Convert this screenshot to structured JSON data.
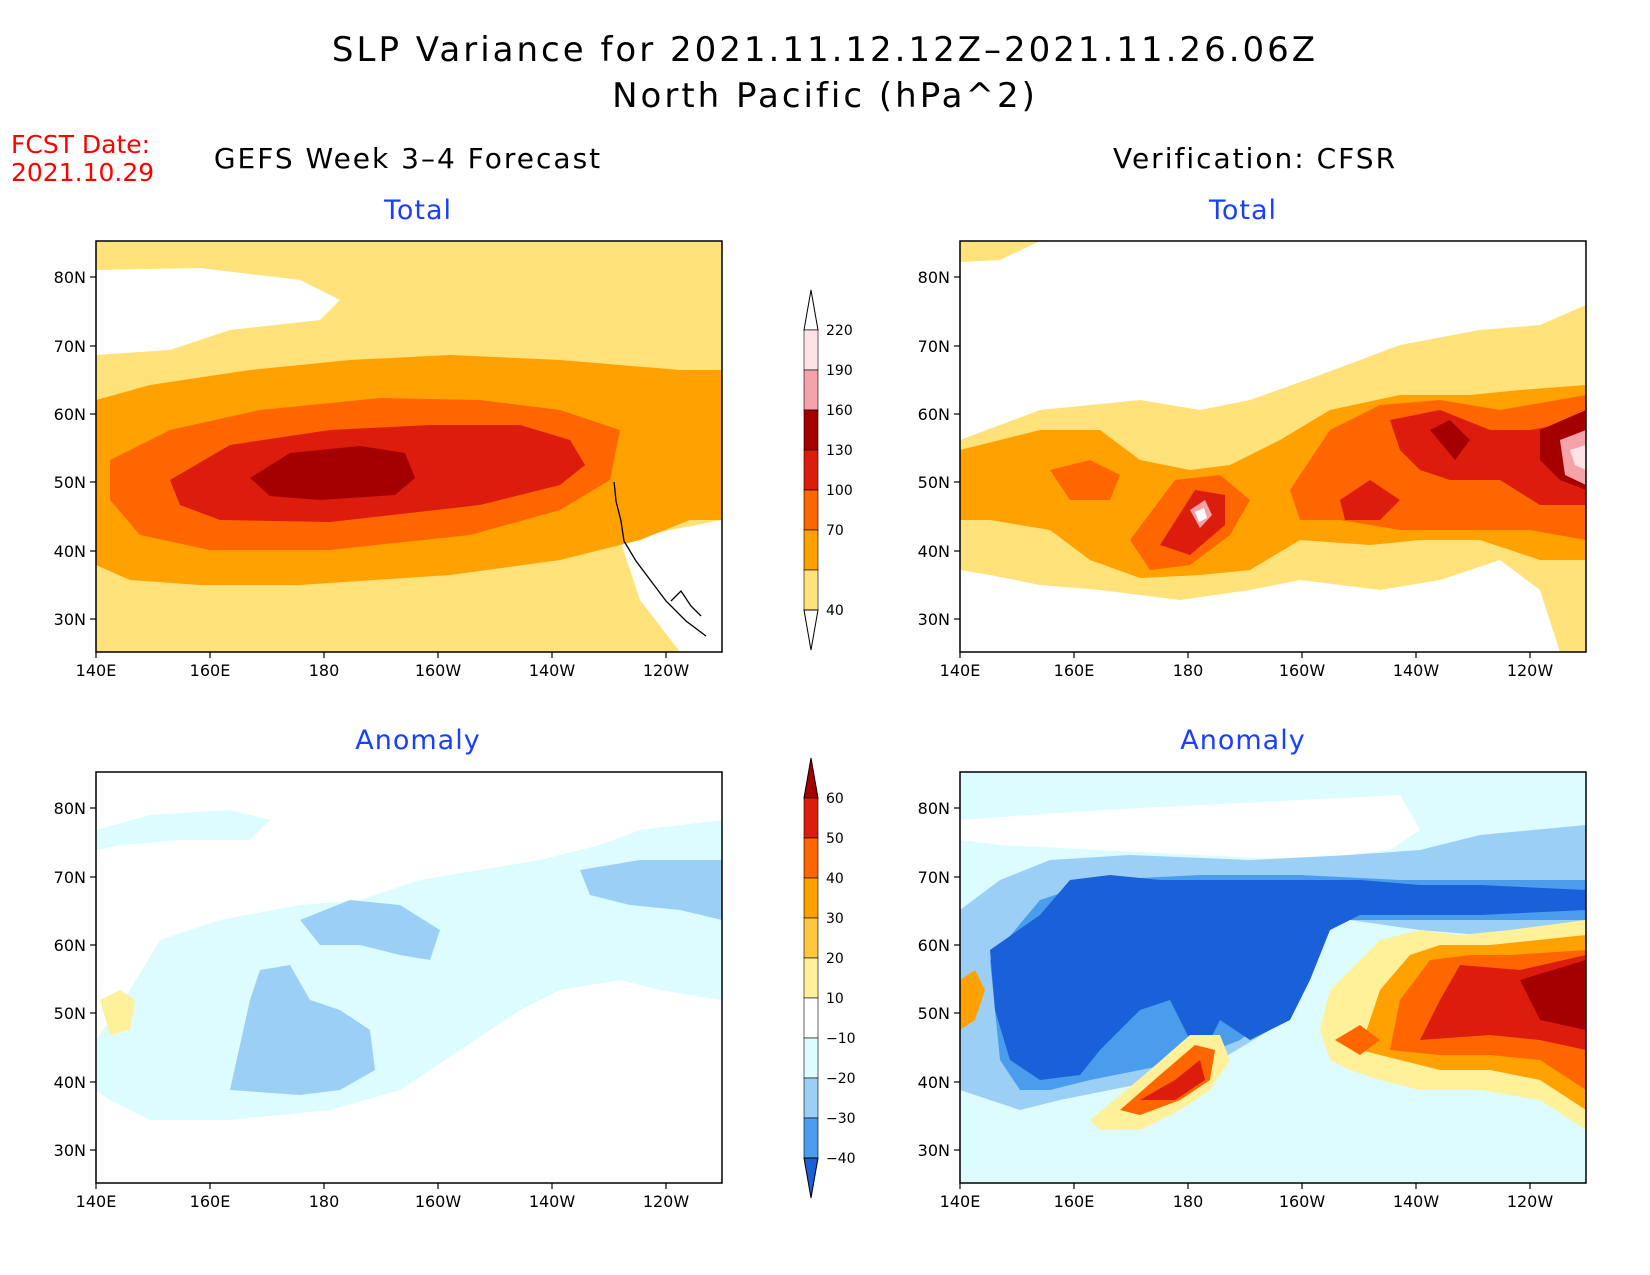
{
  "title_line1": "SLP Variance for 2021.11.12.12Z–2021.11.26.06Z",
  "title_line2": "North Pacific (hPa^2)",
  "fcst_label": "FCST Date:",
  "fcst_date": "2021.10.29",
  "left_column_title": "GEFS Week 3–4 Forecast",
  "right_column_title": "Verification: CFSR",
  "panel_total_label": "Total",
  "panel_anomaly_label": "Anomaly",
  "axes": {
    "lon_ticks": [
      "140E",
      "160E",
      "180",
      "160W",
      "140W",
      "120W"
    ],
    "lat_ticks": [
      "80N",
      "70N",
      "60N",
      "50N",
      "40N",
      "30N"
    ]
  },
  "total_colorbar": {
    "levels": [
      "220",
      "190",
      "160",
      "130",
      "100",
      "70",
      "40"
    ],
    "colors": [
      "#fde3e6",
      "#f4a3a8",
      "#a50000",
      "#dc1c0c",
      "#ff6600",
      "#ffa100",
      "#ffe27a"
    ]
  },
  "anomaly_colorbar": {
    "levels": [
      "60",
      "50",
      "40",
      "30",
      "20",
      "10",
      "−10",
      "−20",
      "−30",
      "−40"
    ],
    "colors": [
      "#a50000",
      "#dc1c0c",
      "#ff6600",
      "#ffa100",
      "#ffc640",
      "#fff09a",
      "#ffffff",
      "#ddfcff",
      "#9ccff5",
      "#4a9ced",
      "#1a60d8"
    ]
  },
  "palette": {
    "background_low": "#ffe27a",
    "land_outline": "#000000",
    "accent_red": "#ff0000",
    "accent_blue": "#1a40ff"
  }
}
